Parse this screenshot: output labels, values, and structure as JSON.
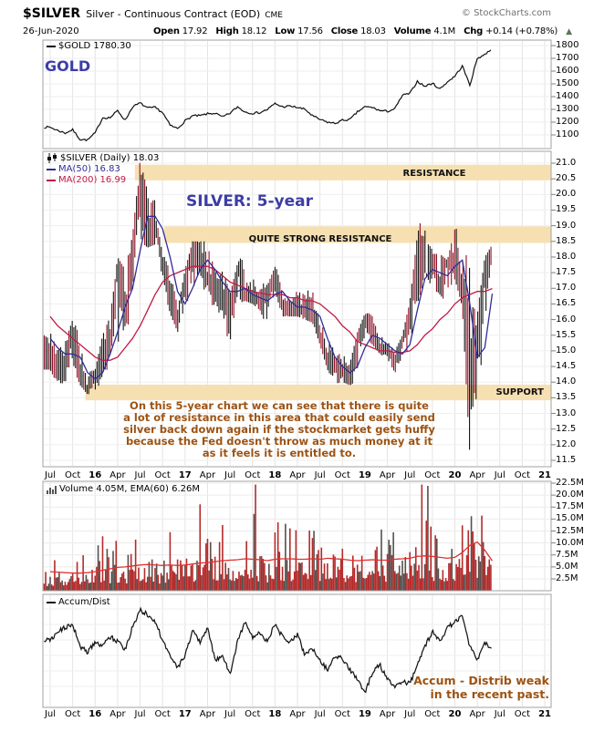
{
  "header": {
    "symbol": "$SILVER",
    "name": "Silver - Continuous Contract (EOD)",
    "exchange": "CME",
    "watermark": "© StockCharts.com",
    "date": "26-Jun-2020",
    "quote": [
      {
        "label": "Open",
        "value": "17.92"
      },
      {
        "label": "High",
        "value": "18.12"
      },
      {
        "label": "Low",
        "value": "17.56"
      },
      {
        "label": "Close",
        "value": "18.03"
      },
      {
        "label": "Volume",
        "value": "4.1M"
      },
      {
        "label": "Chg",
        "value": "+0.14 (+0.78%)"
      }
    ],
    "change_arrow": "▲",
    "change_direction": "up"
  },
  "panels": {
    "gold": {
      "legend": "$GOLD 1780.30",
      "big_label": "GOLD"
    },
    "silver": {
      "legend_main": "$SILVER (Daily) 18.03",
      "legend_ma50": "MA(50) 16.83",
      "legend_ma200": "MA(200) 16.99",
      "big_label": "SILVER: 5-year",
      "band_labels": {
        "resistance": "RESISTANCE",
        "quite_strong": "QUITE STRONG RESISTANCE",
        "support": "SUPPORT"
      },
      "commentary": [
        "On this 5-year chart we can see that there is quite",
        "a lot of resistance in this area that could easily send",
        "silver back down again if the stockmarket gets huffy",
        "because the Fed doesn't throw as much money at it",
        "as it feels it is entitled to."
      ]
    },
    "volume": {
      "legend": "Volume 4.05M, EMA(60) 6.26M"
    },
    "accum": {
      "legend": "Accum/Dist",
      "note": [
        "Accum - Distrib weak",
        "in the recent past."
      ]
    }
  },
  "x_axis": {
    "labels": [
      "Jul",
      "Oct",
      "16",
      "Apr",
      "Jul",
      "Oct",
      "17",
      "Apr",
      "Jul",
      "Oct",
      "18",
      "Apr",
      "Jul",
      "Oct",
      "19",
      "Apr",
      "Jul",
      "Oct",
      "20",
      "Apr",
      "Jul",
      "Oct",
      "21"
    ],
    "bold_indices": [
      2,
      6,
      10,
      14,
      18,
      22
    ]
  },
  "colors": {
    "accent_blue": "#3d3da6",
    "band_fill": "#f6e0b2",
    "annotation_brown": "#9d5313",
    "candle_up": "#141414",
    "candle_down": "#8f1025",
    "ma50": "#2e2e99",
    "ma200": "#c11b45",
    "volume_bar": "#b42a2a",
    "volume_bar_alt": "#56504d",
    "volume_ema": "#e03030",
    "gold_line": "#101010",
    "accum_line": "#141414",
    "grid": "#e4e4e4",
    "border": "#a0a0a0",
    "up_arrow": "#557a55"
  },
  "chart_data": [
    {
      "id": "gold",
      "type": "line",
      "title": "$GOLD",
      "last_value": 1780.3,
      "months": [
        "Jul15",
        "Aug15",
        "Sep15",
        "Oct15",
        "Nov15",
        "Dec15",
        "Jan16",
        "Feb16",
        "Mar16",
        "Apr16",
        "May16",
        "Jun16",
        "Jul16",
        "Aug16",
        "Sep16",
        "Oct16",
        "Nov16",
        "Dec16",
        "Jan17",
        "Feb17",
        "Mar17",
        "Apr17",
        "May17",
        "Jun17",
        "Jul17",
        "Aug17",
        "Sep17",
        "Oct17",
        "Nov17",
        "Dec17",
        "Jan18",
        "Feb18",
        "Mar18",
        "Apr18",
        "May18",
        "Jun18",
        "Jul18",
        "Aug18",
        "Sep18",
        "Oct18",
        "Nov18",
        "Dec18",
        "Jan19",
        "Feb19",
        "Mar19",
        "Apr19",
        "May19",
        "Jun19",
        "Jul19",
        "Aug19",
        "Sep19",
        "Oct19",
        "Nov19",
        "Dec19",
        "Jan20",
        "Feb20",
        "Mar20",
        "Apr20",
        "May20",
        "Jun20"
      ],
      "series": [
        {
          "name": "$GOLD",
          "values": [
            1160,
            1135,
            1115,
            1140,
            1065,
            1060,
            1115,
            1235,
            1235,
            1290,
            1215,
            1320,
            1350,
            1310,
            1315,
            1275,
            1175,
            1150,
            1210,
            1250,
            1250,
            1265,
            1270,
            1240,
            1270,
            1320,
            1280,
            1270,
            1275,
            1300,
            1345,
            1320,
            1325,
            1315,
            1300,
            1250,
            1220,
            1200,
            1190,
            1215,
            1220,
            1280,
            1320,
            1315,
            1290,
            1285,
            1305,
            1410,
            1425,
            1520,
            1480,
            1505,
            1460,
            1515,
            1560,
            1640,
            1490,
            1700,
            1730,
            1780
          ]
        }
      ],
      "ylim": [
        1040,
        1840
      ],
      "y_tick_values": [
        1800,
        1700,
        1600,
        1500,
        1400,
        1300,
        1200,
        1100
      ],
      "y_ticks": [
        "1800",
        "1700",
        "1600",
        "1500",
        "1400",
        "1300",
        "1200",
        "1100"
      ]
    },
    {
      "id": "silver",
      "type": "candlestick",
      "title": "$SILVER (Daily)",
      "last_value": 18.03,
      "series": [
        {
          "name": "close",
          "values": [
            14.8,
            14.6,
            14.5,
            15.6,
            14.1,
            13.8,
            14.2,
            14.9,
            15.4,
            17.8,
            16.0,
            18.6,
            20.3,
            18.6,
            19.2,
            17.8,
            16.5,
            15.9,
            17.5,
            18.3,
            18.25,
            17.2,
            17.3,
            16.6,
            16.7,
            17.6,
            16.7,
            16.7,
            16.5,
            17.0,
            17.2,
            16.4,
            16.3,
            16.3,
            16.4,
            16.1,
            15.5,
            14.5,
            14.7,
            14.3,
            14.1,
            15.5,
            16.0,
            15.6,
            15.1,
            15.0,
            14.6,
            15.3,
            16.3,
            18.3,
            17.0,
            18.0,
            17.0,
            17.9,
            18.0,
            16.7,
            14.0,
            15.0,
            17.9,
            18.03
          ]
        },
        {
          "name": "high",
          "values": [
            15.7,
            15.0,
            15.3,
            16.0,
            15.5,
            14.4,
            14.4,
            15.5,
            16.1,
            18.0,
            17.6,
            18.7,
            21.1,
            20.1,
            19.8,
            18.0,
            18.0,
            16.3,
            17.6,
            18.5,
            18.5,
            18.5,
            17.5,
            17.7,
            16.8,
            17.8,
            18.2,
            17.4,
            17.2,
            17.1,
            17.7,
            17.3,
            16.8,
            16.9,
            16.8,
            17.3,
            16.2,
            15.6,
            14.9,
            14.9,
            14.6,
            15.6,
            16.2,
            16.2,
            15.5,
            15.3,
            15.0,
            15.5,
            16.6,
            18.7,
            19.75,
            18.1,
            18.1,
            17.9,
            18.9,
            18.9,
            17.6,
            16.2,
            18.0,
            18.4
          ]
        },
        {
          "name": "low",
          "values": [
            14.4,
            13.9,
            14.0,
            14.5,
            13.9,
            13.6,
            13.6,
            14.0,
            14.7,
            15.2,
            15.8,
            15.9,
            18.5,
            18.3,
            18.4,
            17.1,
            16.2,
            15.6,
            15.9,
            17.1,
            16.8,
            17.1,
            16.1,
            16.3,
            14.3,
            16.5,
            16.6,
            16.5,
            16.3,
            15.7,
            16.9,
            16.1,
            16.1,
            16.1,
            16.0,
            15.9,
            15.2,
            14.4,
            13.95,
            14.0,
            13.9,
            14.0,
            15.4,
            15.2,
            14.9,
            14.75,
            14.3,
            14.6,
            14.9,
            16.3,
            17.5,
            17.0,
            16.8,
            16.5,
            17.3,
            16.4,
            11.65,
            13.8,
            14.8,
            17.4
          ]
        },
        {
          "name": "MA(50)",
          "values": [
            15.4,
            15.1,
            14.9,
            14.9,
            14.8,
            14.3,
            14.1,
            14.3,
            14.9,
            15.6,
            16.4,
            17.0,
            18.2,
            19.3,
            19.3,
            18.9,
            18.0,
            16.9,
            16.5,
            17.0,
            17.6,
            17.9,
            17.6,
            17.2,
            16.9,
            16.9,
            17.0,
            16.8,
            16.7,
            16.6,
            16.8,
            16.9,
            16.6,
            16.4,
            16.4,
            16.3,
            16.1,
            15.4,
            14.8,
            14.5,
            14.3,
            14.5,
            15.1,
            15.5,
            15.4,
            15.2,
            15.0,
            14.9,
            15.2,
            16.3,
            17.3,
            17.6,
            17.5,
            17.4,
            17.7,
            17.9,
            16.5,
            14.8,
            15.1,
            16.83
          ]
        },
        {
          "name": "MA(200)",
          "values": [
            16.1,
            15.8,
            15.6,
            15.4,
            15.2,
            15.0,
            14.8,
            14.7,
            14.7,
            14.8,
            15.1,
            15.4,
            15.8,
            16.3,
            16.8,
            17.2,
            17.4,
            17.5,
            17.6,
            17.7,
            17.7,
            17.7,
            17.6,
            17.4,
            17.2,
            17.1,
            17.0,
            16.9,
            16.85,
            16.8,
            16.8,
            16.8,
            16.7,
            16.7,
            16.6,
            16.6,
            16.5,
            16.3,
            16.1,
            15.8,
            15.6,
            15.3,
            15.2,
            15.1,
            15.0,
            15.0,
            14.95,
            14.95,
            15.0,
            15.2,
            15.5,
            15.7,
            16.0,
            16.2,
            16.5,
            16.7,
            16.8,
            16.9,
            16.9,
            16.99
          ]
        }
      ],
      "bands": [
        {
          "label": "RESISTANCE",
          "price_from": 20.45,
          "price_to": 20.95,
          "start_month": 11.3
        },
        {
          "label": "QUITE STRONG RESISTANCE",
          "price_from": 18.45,
          "price_to": 18.98,
          "start_month": 15.2
        },
        {
          "label": "SUPPORT",
          "price_from": 13.42,
          "price_to": 13.92,
          "start_month": 4.7
        }
      ],
      "ylim": [
        11.35,
        21.4
      ],
      "y_tick_values": [
        21.0,
        20.5,
        20.0,
        19.5,
        19.0,
        18.5,
        18.0,
        17.5,
        17.0,
        16.5,
        16.0,
        15.5,
        15.0,
        14.5,
        14.0,
        13.5,
        13.0,
        12.5,
        12.0,
        11.5
      ],
      "y_ticks": [
        "21.0",
        "20.5",
        "20.0",
        "19.5",
        "19.0",
        "18.5",
        "18.0",
        "17.5",
        "17.0",
        "16.5",
        "16.0",
        "15.5",
        "15.0",
        "14.5",
        "14.0",
        "13.5",
        "13.0",
        "12.5",
        "12.0",
        "11.5"
      ]
    },
    {
      "id": "volume",
      "type": "bar",
      "title": "Volume",
      "last_value_label": "4.05M",
      "series": [
        {
          "name": "volume_monthly_avg_M",
          "values": [
            3.2,
            3.5,
            3.3,
            3.4,
            3.6,
            3.8,
            4.2,
            4.8,
            5.0,
            5.5,
            5.0,
            5.8,
            6.0,
            5.5,
            5.2,
            5.0,
            6.0,
            5.0,
            5.5,
            6.0,
            6.5,
            6.0,
            6.5,
            7.0,
            6.5,
            7.0,
            7.5,
            6.5,
            6.0,
            5.5,
            7.5,
            7.0,
            6.5,
            6.0,
            6.5,
            7.0,
            6.5,
            7.5,
            6.5,
            6.0,
            5.5,
            6.0,
            6.5,
            7.0,
            6.0,
            6.5,
            7.5,
            7.0,
            7.5,
            8.5,
            8.0,
            7.0,
            6.5,
            6.0,
            7.0,
            9.5,
            12.0,
            9.0,
            7.5,
            6.0
          ]
        },
        {
          "name": "EMA(60)_M",
          "values": [
            4.0,
            3.9,
            3.8,
            3.7,
            3.7,
            3.8,
            4.0,
            4.3,
            4.6,
            4.9,
            5.0,
            5.2,
            5.4,
            5.5,
            5.4,
            5.3,
            5.4,
            5.3,
            5.4,
            5.6,
            5.8,
            5.9,
            6.1,
            6.3,
            6.4,
            6.5,
            6.7,
            6.6,
            6.5,
            6.3,
            6.6,
            6.7,
            6.7,
            6.6,
            6.6,
            6.7,
            6.6,
            6.8,
            6.7,
            6.6,
            6.4,
            6.3,
            6.4,
            6.5,
            6.4,
            6.4,
            6.6,
            6.7,
            6.8,
            7.2,
            7.3,
            7.2,
            7.0,
            6.8,
            7.0,
            8.0,
            9.5,
            10.2,
            8.5,
            6.26
          ]
        }
      ],
      "ylim": [
        0,
        22.5
      ],
      "y_tick_values": [
        22.5,
        20.0,
        17.5,
        15.0,
        12.5,
        10.0,
        7.5,
        5.0,
        2.5
      ],
      "y_ticks": [
        "22.5M",
        "20.0M",
        "17.5M",
        "15.0M",
        "12.5M",
        "10.0M",
        "7.5M",
        "5.0M",
        "2.5M"
      ]
    },
    {
      "id": "accum",
      "type": "line",
      "title": "Accum/Dist",
      "series": [
        {
          "name": "Accum/Dist (normalized 0-1)",
          "values": [
            0.62,
            0.7,
            0.75,
            0.78,
            0.55,
            0.48,
            0.6,
            0.55,
            0.65,
            0.6,
            0.52,
            0.75,
            0.93,
            0.88,
            0.8,
            0.62,
            0.45,
            0.32,
            0.45,
            0.72,
            0.6,
            0.75,
            0.4,
            0.45,
            0.25,
            0.6,
            0.8,
            0.65,
            0.7,
            0.6,
            0.78,
            0.65,
            0.58,
            0.68,
            0.45,
            0.53,
            0.4,
            0.3,
            0.45,
            0.42,
            0.3,
            0.2,
            0.05,
            0.28,
            0.35,
            0.2,
            0.12,
            0.18,
            0.15,
            0.35,
            0.55,
            0.7,
            0.6,
            0.75,
            0.8,
            0.88,
            0.55,
            0.4,
            0.58,
            0.52
          ]
        }
      ],
      "ylim": [
        0,
        1
      ],
      "y_tick_values": [],
      "y_ticks": []
    }
  ]
}
